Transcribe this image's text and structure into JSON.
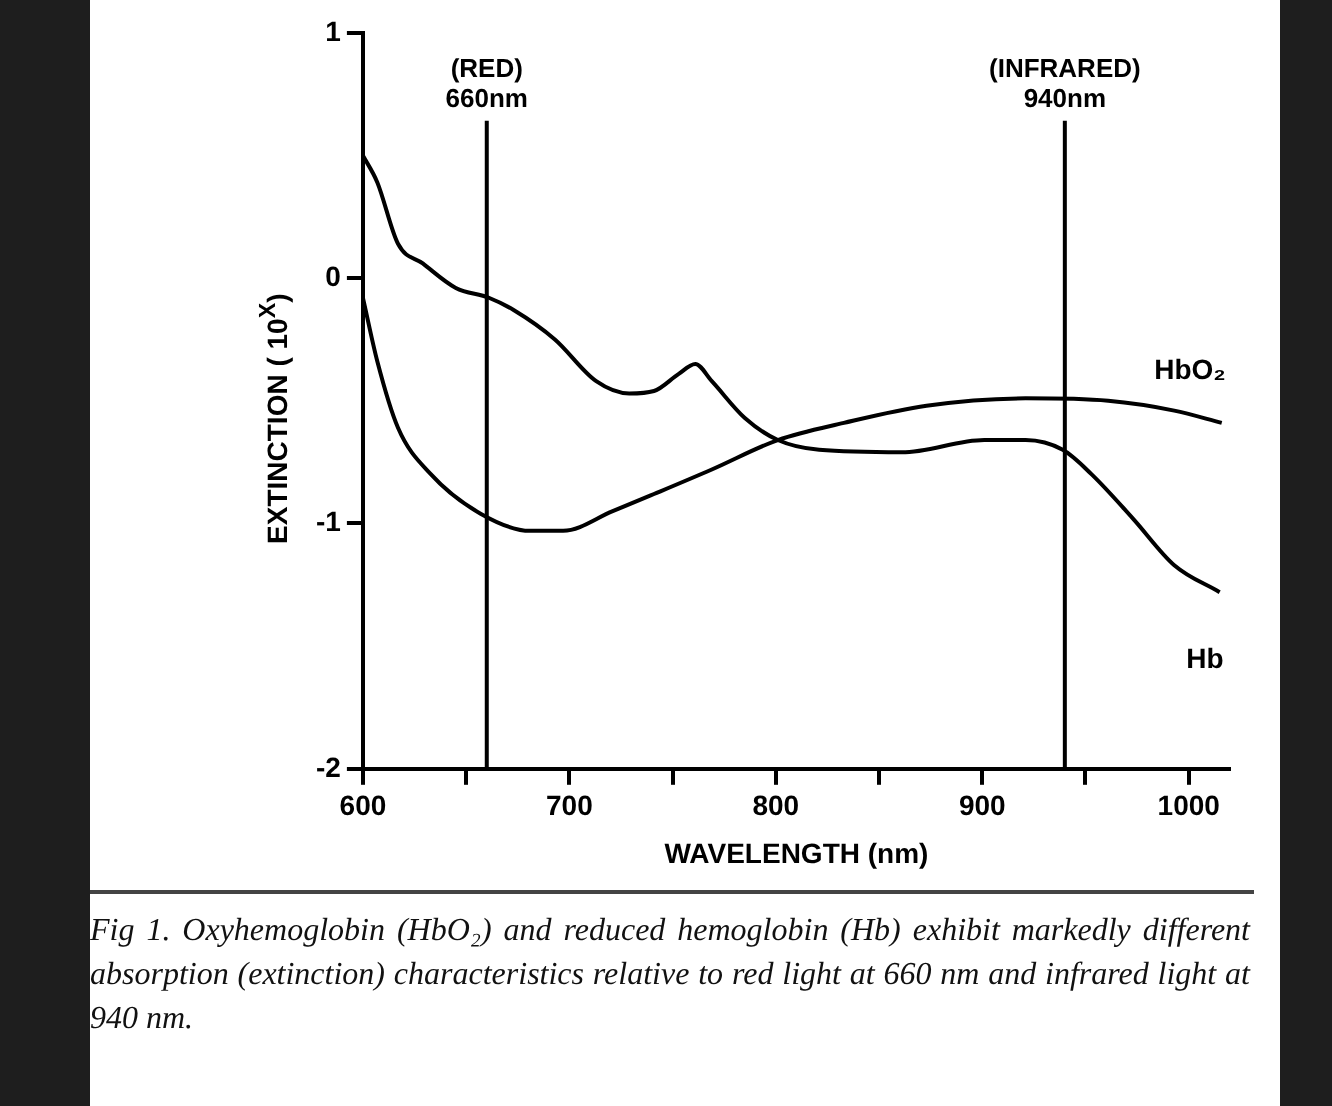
{
  "chart_data": {
    "type": "line",
    "xlabel": "WAVELENGTH (nm)",
    "ylabel": "EXTINCTION ( 10$^{X}$)",
    "xlim": [
      600,
      1020
    ],
    "xticks": [
      600,
      {
        "value": 650,
        "label": null
      },
      700,
      {
        "value": 750,
        "label": null
      },
      800,
      {
        "value": 850,
        "label": null
      },
      900,
      {
        "value": 950,
        "label": null
      },
      1000
    ],
    "ylim": [
      -2,
      1
    ],
    "yticks": [
      -2,
      -1,
      0,
      1
    ],
    "grid": false,
    "legend": false,
    "marker": "none",
    "line_style": "solid",
    "series": [
      {
        "name": "Hb",
        "color": "#000000",
        "x": [
          600,
          607,
          617,
          629,
          645,
          661,
          673,
          693,
          713,
          729,
          741,
          753,
          761,
          769,
          785,
          801,
          821,
          861,
          901,
          921,
          939,
          953,
          973,
          993,
          1015
        ],
        "values": [
          0.5,
          0.39,
          0.14,
          0.06,
          -0.04,
          -0.08,
          -0.13,
          -0.25,
          -0.42,
          -0.47,
          -0.46,
          -0.39,
          -0.35,
          -0.42,
          -0.57,
          -0.66,
          -0.7,
          -0.71,
          -0.66,
          -0.66,
          -0.7,
          -0.8,
          -0.98,
          -1.17,
          -1.28
        ]
      },
      {
        "name": "HbO₂",
        "color": "#000000",
        "x": [
          600,
          607,
          617,
          633,
          657,
          681,
          697,
          721,
          741,
          769,
          801,
          833,
          873,
          921,
          961,
          993,
          1016
        ],
        "values": [
          -0.08,
          -0.34,
          -0.61,
          -0.8,
          -0.96,
          -1.03,
          -1.03,
          -0.95,
          -0.88,
          -0.78,
          -0.66,
          -0.59,
          -0.52,
          -0.49,
          -0.5,
          -0.54,
          -0.59
        ]
      }
    ],
    "ref_lines": [
      {
        "axis": "x",
        "value": 660,
        "label": "(RED)\n660nm",
        "color": "#000000"
      },
      {
        "axis": "x",
        "value": 940,
        "label": "(INFRARED)\n940nm",
        "color": "#000000"
      }
    ],
    "annotations": [
      "Fig 1. Oxyhemoglobin (HbO₂) and reduced hemoglobin (Hb) exhibit markedly different absorption (extinction) characteristics relative to red light at 660 nm and infrared light at 940 nm."
    ]
  }
}
